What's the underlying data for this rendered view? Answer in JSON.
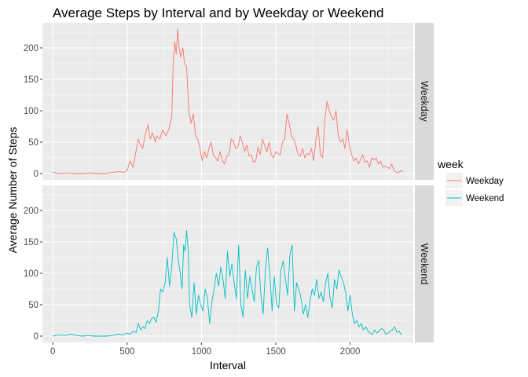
{
  "chart_data": {
    "type": "line",
    "title": "Average Steps by Interval and by Weekday or Weekend",
    "xlabel": "Interval",
    "ylabel": "Average Number of Steps",
    "xlim": [
      -70,
      2425
    ],
    "ylim": [
      -10,
      240
    ],
    "x_ticks": [
      0,
      500,
      1000,
      1500,
      2000
    ],
    "x_minor_ticks": [
      250,
      750,
      1250,
      1750,
      2250
    ],
    "y_ticks": [
      0,
      50,
      100,
      150,
      200
    ],
    "y_minor_ticks": [
      25,
      75,
      125,
      175,
      225
    ],
    "facet_layout": "vertical",
    "grid": true,
    "panel_background": "#ebebeb",
    "strip_background": "#d9d9d9",
    "legend": {
      "title": "week",
      "position": "right",
      "entries": [
        "Weekday",
        "Weekend"
      ]
    },
    "series": [
      {
        "name": "Weekday",
        "color": "#f8766d",
        "x": [
          0,
          50,
          100,
          150,
          200,
          250,
          300,
          350,
          400,
          450,
          480,
          500,
          520,
          540,
          555,
          575,
          590,
          605,
          620,
          640,
          655,
          670,
          690,
          700,
          720,
          740,
          760,
          780,
          800,
          810,
          820,
          830,
          840,
          850,
          860,
          875,
          885,
          900,
          915,
          930,
          945,
          960,
          975,
          990,
          1005,
          1020,
          1035,
          1050,
          1065,
          1080,
          1095,
          1110,
          1125,
          1140,
          1155,
          1170,
          1185,
          1200,
          1215,
          1230,
          1245,
          1260,
          1275,
          1290,
          1305,
          1320,
          1335,
          1350,
          1365,
          1380,
          1395,
          1410,
          1425,
          1440,
          1455,
          1470,
          1485,
          1500,
          1515,
          1530,
          1545,
          1560,
          1575,
          1590,
          1605,
          1620,
          1635,
          1650,
          1665,
          1680,
          1695,
          1710,
          1725,
          1740,
          1755,
          1770,
          1785,
          1800,
          1815,
          1830,
          1845,
          1860,
          1875,
          1890,
          1905,
          1920,
          1935,
          1950,
          1965,
          1980,
          1995,
          2010,
          2025,
          2040,
          2055,
          2070,
          2085,
          2100,
          2115,
          2130,
          2145,
          2160,
          2175,
          2190,
          2205,
          2220,
          2235,
          2250,
          2265,
          2280,
          2295,
          2310,
          2325,
          2340,
          2355
        ],
        "values": [
          2,
          0,
          1,
          0,
          0,
          1,
          0,
          0,
          2,
          3,
          2,
          5,
          20,
          10,
          30,
          55,
          45,
          40,
          60,
          78,
          55,
          65,
          50,
          60,
          55,
          70,
          60,
          70,
          90,
          180,
          210,
          190,
          230,
          200,
          185,
          200,
          175,
          170,
          100,
          80,
          95,
          60,
          55,
          40,
          20,
          35,
          25,
          40,
          50,
          30,
          25,
          20,
          35,
          22,
          15,
          28,
          30,
          55,
          52,
          40,
          42,
          60,
          50,
          35,
          45,
          28,
          30,
          18,
          20,
          42,
          30,
          55,
          45,
          35,
          50,
          30,
          25,
          35,
          32,
          30,
          50,
          55,
          95,
          80,
          60,
          55,
          45,
          30,
          28,
          40,
          25,
          32,
          30,
          40,
          20,
          55,
          75,
          30,
          25,
          85,
          115,
          100,
          90,
          85,
          100,
          60,
          50,
          55,
          40,
          70,
          45,
          30,
          20,
          25,
          15,
          22,
          30,
          18,
          20,
          10,
          25,
          22,
          25,
          15,
          20,
          10,
          12,
          10,
          8,
          15,
          5,
          2,
          1,
          5,
          2
        ]
      },
      {
        "name": "Weekend",
        "color": "#00bfc4",
        "x": [
          0,
          40,
          80,
          120,
          160,
          200,
          240,
          280,
          320,
          360,
          400,
          440,
          470,
          500,
          520,
          540,
          560,
          575,
          590,
          605,
          620,
          635,
          650,
          665,
          680,
          695,
          710,
          725,
          740,
          755,
          770,
          785,
          800,
          815,
          830,
          845,
          860,
          870,
          880,
          890,
          900,
          910,
          920,
          935,
          950,
          965,
          980,
          995,
          1010,
          1025,
          1040,
          1055,
          1070,
          1085,
          1100,
          1115,
          1130,
          1145,
          1160,
          1175,
          1190,
          1205,
          1220,
          1235,
          1250,
          1265,
          1280,
          1295,
          1310,
          1325,
          1340,
          1355,
          1370,
          1385,
          1400,
          1415,
          1430,
          1445,
          1460,
          1475,
          1490,
          1505,
          1520,
          1535,
          1550,
          1565,
          1580,
          1595,
          1610,
          1625,
          1640,
          1655,
          1670,
          1685,
          1700,
          1715,
          1730,
          1745,
          1760,
          1775,
          1790,
          1805,
          1820,
          1835,
          1850,
          1865,
          1880,
          1895,
          1910,
          1925,
          1940,
          1955,
          1970,
          1985,
          2000,
          2015,
          2030,
          2045,
          2060,
          2075,
          2090,
          2105,
          2120,
          2135,
          2150,
          2165,
          2180,
          2195,
          2210,
          2225,
          2240,
          2255,
          2270,
          2285,
          2300,
          2315,
          2330,
          2345
        ],
        "values": [
          0,
          2,
          1,
          3,
          1,
          0,
          1,
          0,
          0,
          0,
          1,
          3,
          2,
          5,
          3,
          8,
          6,
          20,
          10,
          15,
          12,
          25,
          20,
          28,
          30,
          22,
          40,
          75,
          70,
          85,
          125,
          80,
          110,
          165,
          155,
          120,
          95,
          75,
          145,
          135,
          168,
          140,
          50,
          30,
          85,
          35,
          65,
          50,
          40,
          75,
          60,
          20,
          55,
          75,
          100,
          80,
          110,
          90,
          60,
          135,
          95,
          115,
          85,
          60,
          145,
          50,
          30,
          105,
          60,
          95,
          75,
          55,
          110,
          120,
          65,
          35,
          105,
          140,
          100,
          40,
          95,
          50,
          45,
          105,
          120,
          90,
          65,
          130,
          145,
          40,
          85,
          75,
          60,
          35,
          50,
          30,
          55,
          75,
          65,
          90,
          60,
          70,
          55,
          85,
          100,
          60,
          45,
          90,
          75,
          105,
          95,
          85,
          70,
          40,
          65,
          35,
          20,
          25,
          15,
          20,
          10,
          15,
          8,
          5,
          3,
          10,
          5,
          8,
          12,
          10,
          3,
          5,
          8,
          10,
          15,
          6,
          8,
          2
        ]
      }
    ]
  }
}
